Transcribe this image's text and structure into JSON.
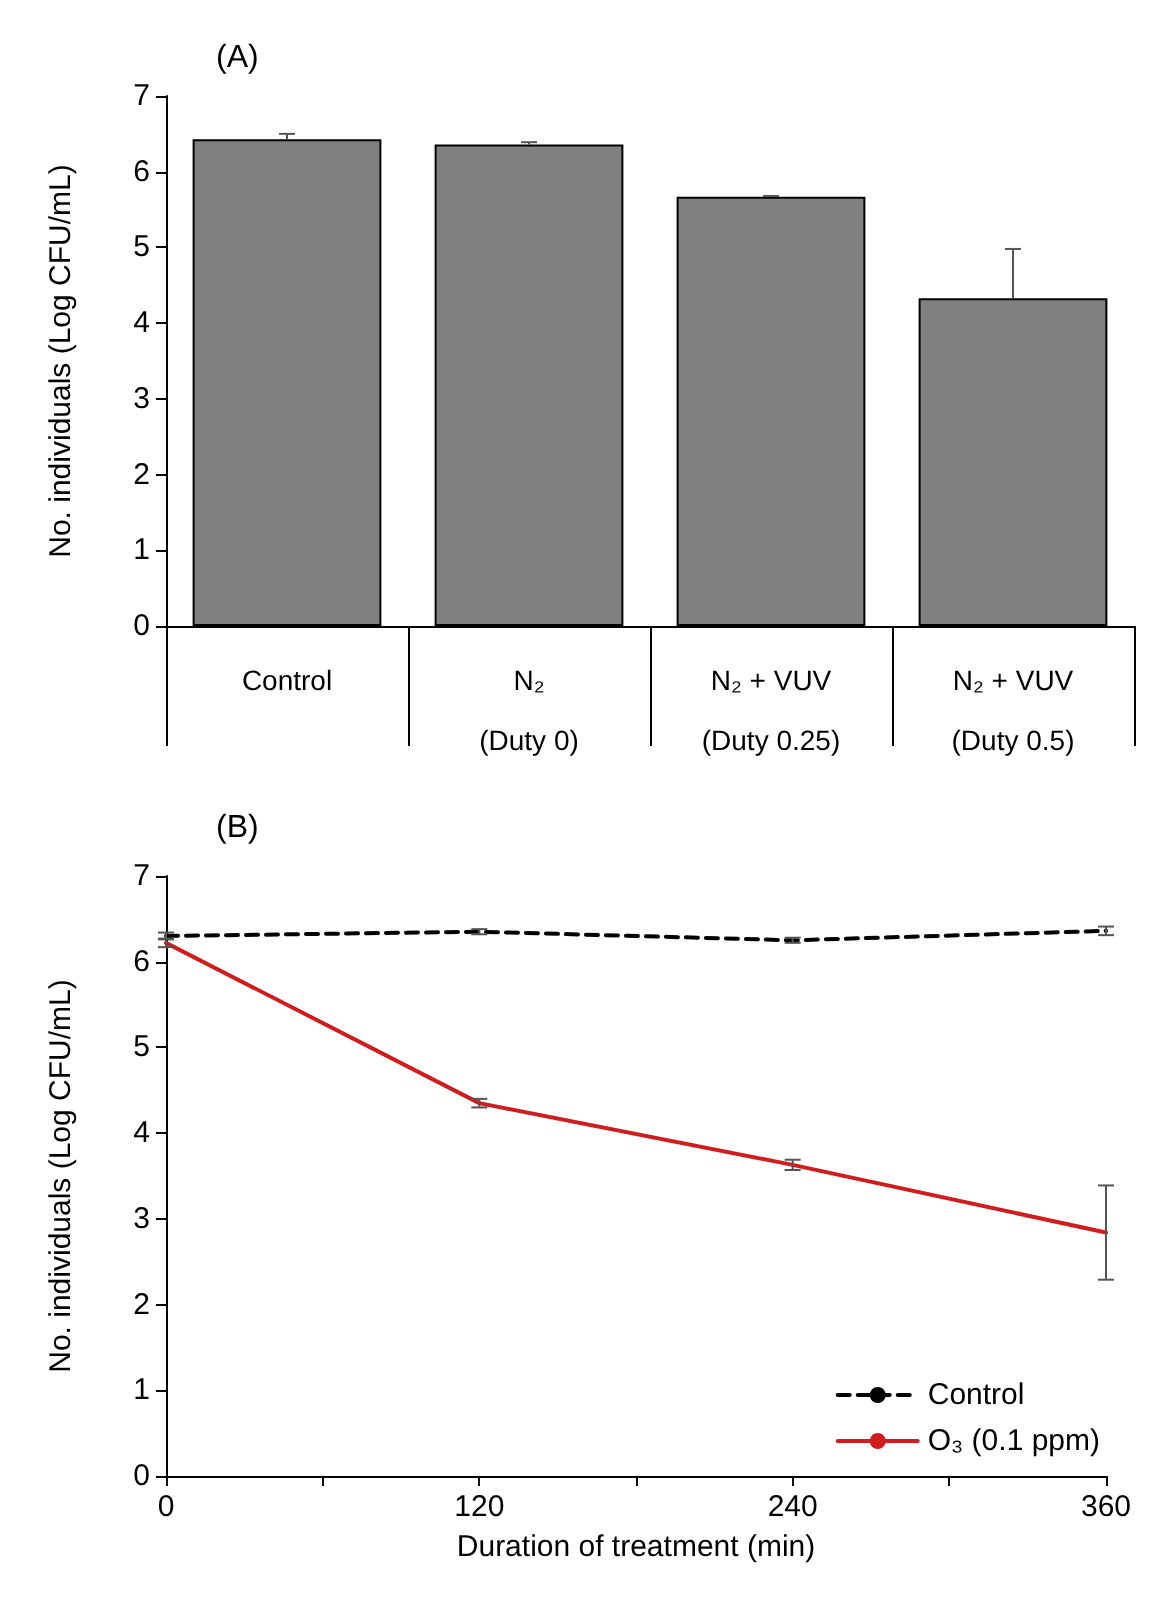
{
  "chart_data": [
    {
      "type": "bar",
      "title": "(A)",
      "ylabel": "No. individuals (Log CFU/mL)",
      "categories": [
        "Control",
        "N₂\n(Duty 0)",
        "N₂ + VUV\n(Duty 0.25)",
        "N₂ + VUV\n(Duty 0.5)"
      ],
      "values": [
        6.43,
        6.36,
        5.67,
        4.33
      ],
      "color": "#808080",
      "errors": [
        [
          6.43,
          6.5
        ],
        [
          6.36,
          6.39
        ],
        [
          5.67,
          5.68
        ],
        [
          4.33,
          4.98
        ]
      ],
      "ylim": [
        0,
        7
      ],
      "yticks": [
        0,
        1,
        2,
        3,
        4,
        5,
        6,
        7
      ]
    },
    {
      "type": "line",
      "title": "(B)",
      "xlabel": "Duration of treatment (min)",
      "ylabel": "No. individuals (Log CFU/mL)",
      "x": [
        0,
        120,
        240,
        360
      ],
      "series": [
        {
          "name": "Control",
          "color": "#000000",
          "line_style": "dashed",
          "values": [
            6.3,
            6.35,
            6.25,
            6.36
          ],
          "errors": [
            0.04,
            0.03,
            0.03,
            0.05
          ]
        },
        {
          "name": "O₃ (0.1 ppm)",
          "color": "#d01c1c",
          "line_style": "solid",
          "values": [
            6.22,
            4.35,
            3.63,
            2.84
          ],
          "errors": [
            0.05,
            0.05,
            0.06,
            0.55
          ]
        }
      ],
      "xlim": [
        0,
        360
      ],
      "xticks": [
        0,
        {
          "value": 60,
          "label": null
        },
        120,
        {
          "value": 180,
          "label": null
        },
        240,
        {
          "value": 300,
          "label": null
        },
        360
      ],
      "ylim": [
        0,
        7
      ],
      "yticks": [
        0,
        1,
        2,
        3,
        4,
        5,
        6,
        7
      ],
      "legend": "bottom right",
      "marker": "none"
    }
  ]
}
